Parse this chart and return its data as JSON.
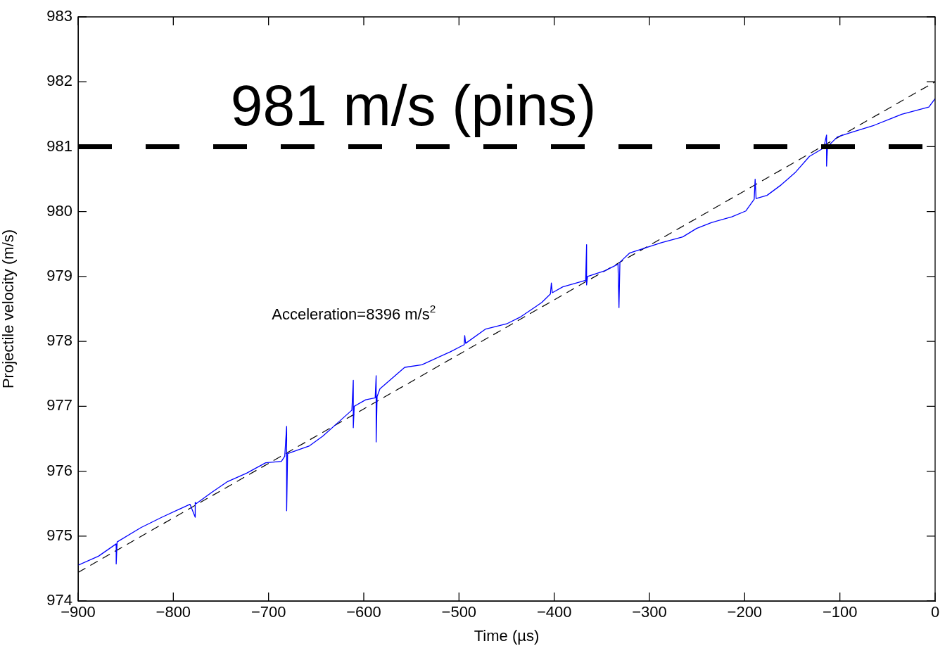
{
  "chart_data": {
    "type": "line",
    "xlabel": "Time (µs)",
    "ylabel": "Projectile velocity (m/s)",
    "xlim": [
      -900,
      0
    ],
    "ylim": [
      974,
      983
    ],
    "xticks": [
      {
        "value": -900,
        "label": "−900"
      },
      {
        "value": -800,
        "label": "−800"
      },
      {
        "value": -700,
        "label": "−700"
      },
      {
        "value": -600,
        "label": "−600"
      },
      {
        "value": -500,
        "label": "−500"
      },
      {
        "value": -400,
        "label": "−400"
      },
      {
        "value": -300,
        "label": "−300"
      },
      {
        "value": -200,
        "label": "−200"
      },
      {
        "value": -100,
        "label": "−100"
      },
      0
    ],
    "yticks": [
      974,
      975,
      976,
      977,
      978,
      979,
      980,
      981,
      982,
      983
    ],
    "grid": false,
    "legend": false,
    "marker": "none",
    "series": [
      {
        "type": "line",
        "color": "#0000ff",
        "line_style": "solid",
        "x": [
          -900,
          -878.6,
          -860,
          -860,
          -859,
          -834,
          -812,
          -782.5,
          -777,
          -777,
          -776,
          -760,
          -743,
          -723,
          -703,
          -686.5,
          -683,
          -681,
          -681,
          -680,
          -657,
          -643,
          -627,
          -612.5,
          -611,
          -611,
          -610,
          -598,
          -588,
          -587,
          -587,
          -586,
          -583,
          -557,
          -539,
          -509,
          -494.5,
          -494,
          -493,
          -472,
          -450,
          -435,
          -413,
          -404,
          -403,
          -402,
          -391,
          -367,
          -366,
          -366,
          -365,
          -346.5,
          -333,
          -332,
          -331,
          -321,
          -287.5,
          -265,
          -250.5,
          -235,
          -213.5,
          -198.7,
          -190,
          -189,
          -188,
          -176.5,
          -161.8,
          -147,
          -132,
          -117,
          -114,
          -114,
          -113,
          -102.7,
          -88,
          -64,
          -35,
          -6.6,
          0
        ],
        "values": [
          974.55,
          974.69,
          974.88,
          974.57,
          974.91,
          975.13,
          975.29,
          975.49,
          975.29,
          975.52,
          975.5,
          975.67,
          975.84,
          975.97,
          976.13,
          976.15,
          976.23,
          976.69,
          975.39,
          976.27,
          976.39,
          976.54,
          976.75,
          976.94,
          977.4,
          976.67,
          977.0,
          977.1,
          977.13,
          977.47,
          976.45,
          977.15,
          977.27,
          977.6,
          977.64,
          977.84,
          977.95,
          978.09,
          977.97,
          978.19,
          978.27,
          978.38,
          978.6,
          978.73,
          978.9,
          978.75,
          978.84,
          978.94,
          979.49,
          978.87,
          979.0,
          979.09,
          979.19,
          978.52,
          979.22,
          979.36,
          979.52,
          979.61,
          979.74,
          979.83,
          979.92,
          980.01,
          980.19,
          980.5,
          980.2,
          980.25,
          980.41,
          980.6,
          980.85,
          980.98,
          981.18,
          980.7,
          981.0,
          981.15,
          981.22,
          981.33,
          981.5,
          981.61,
          981.74
        ]
      },
      {
        "type": "line",
        "color": "#000000",
        "line_style": "dashed",
        "x": [
          -900,
          0
        ],
        "values": [
          974.44,
          982.0
        ]
      }
    ],
    "ref_lines": [
      {
        "axis": "y",
        "value": 981,
        "label": "981 m/s (pins)",
        "color": "#000000",
        "line_style": "dashed"
      }
    ],
    "annotations": [
      "Acceleration=8396 m/s$^{2}$"
    ]
  }
}
